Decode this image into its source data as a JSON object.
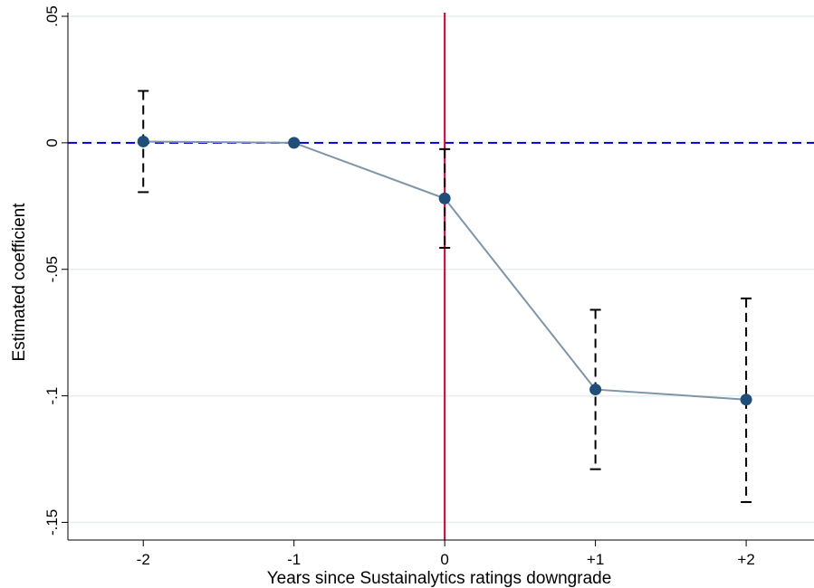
{
  "chart_data": {
    "type": "scatter",
    "xlabel": "Years since Sustainalytics ratings downgrade",
    "ylabel": "Estimated coefficient",
    "x_categories": [
      "-2",
      "-1",
      "0",
      "+1",
      "+2"
    ],
    "x_values": [
      -2,
      -1,
      0,
      1,
      2
    ],
    "xlim": [
      -2.5,
      2.45
    ],
    "ylim": [
      -0.157,
      0.05
    ],
    "y_ticks": [
      0.05,
      0,
      -0.05,
      -0.1,
      -0.15
    ],
    "y_tick_labels": [
      ".05",
      "0",
      "-.05",
      "-.1",
      "-.15"
    ],
    "grid": true,
    "series": [
      {
        "estimate": [
          0.0005,
          0.0,
          -0.022,
          -0.0975,
          -0.1015
        ],
        "ci_low": [
          -0.0195,
          0.0,
          -0.0415,
          -0.129,
          -0.142
        ],
        "ci_high": [
          0.0205,
          0.0,
          -0.0025,
          -0.066,
          -0.0615
        ]
      }
    ],
    "reference_lines": {
      "horizontal_y": 0,
      "vertical_x": 0
    },
    "colors": {
      "marker": "#1f4e79",
      "line": "#7f95a8",
      "ci": "#000000",
      "zero_line": "#0000cc",
      "event_line": "#cc0033",
      "grid": "#e6efef"
    }
  }
}
